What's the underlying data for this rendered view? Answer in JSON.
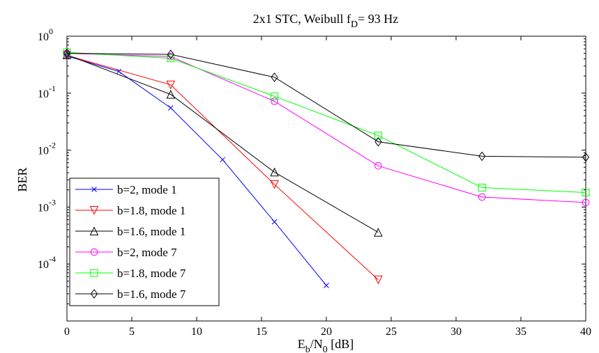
{
  "chart_data": {
    "type": "line",
    "title": "2x1 STC, Weibull f",
    "title_sub": "D",
    "title_suffix": "= 93 Hz",
    "xlabel": {
      "main": "E",
      "sub1": "b",
      "mid": "/N",
      "sub2": "0",
      "suffix": " [dB]"
    },
    "ylabel": "BER",
    "xlim": [
      0,
      40
    ],
    "ylim": [
      1e-05,
      1
    ],
    "yscale": "log",
    "xticks": [
      0,
      5,
      10,
      15,
      20,
      25,
      30,
      35,
      40
    ],
    "xtick_labels": [
      "0",
      "5",
      "10",
      "15",
      "20",
      "25",
      "30",
      "35",
      "40"
    ],
    "yticks": [
      1,
      0.1,
      0.01,
      0.001,
      0.0001
    ],
    "ytick_labels": [
      {
        "base": "10",
        "exp": "0"
      },
      {
        "base": "10",
        "exp": "-1"
      },
      {
        "base": "10",
        "exp": "-2"
      },
      {
        "base": "10",
        "exp": "-3"
      },
      {
        "base": "10",
        "exp": "-4"
      }
    ],
    "grid": false,
    "legend_position": "lower-left",
    "series": [
      {
        "name": "b=2, mode 1",
        "color": "#0000ff",
        "marker": "x",
        "x": [
          0,
          4,
          8,
          12,
          16,
          20
        ],
        "y": [
          0.45,
          0.24,
          0.055,
          0.0068,
          0.00055,
          4.2e-05
        ]
      },
      {
        "name": "b=1.8, mode 1",
        "color": "#ff0000",
        "marker": "triangle-down",
        "x": [
          0,
          8,
          16,
          24
        ],
        "y": [
          0.46,
          0.14,
          0.0025,
          5.3e-05
        ]
      },
      {
        "name": "b=1.6, mode 1",
        "color": "#000000",
        "marker": "triangle-up",
        "x": [
          0,
          8,
          16,
          24
        ],
        "y": [
          0.47,
          0.095,
          0.0041,
          0.00036
        ]
      },
      {
        "name": "b=2, mode 7",
        "color": "#ff00ff",
        "marker": "circle",
        "x": [
          0,
          8,
          16,
          24,
          32,
          40
        ],
        "y": [
          0.5,
          0.44,
          0.072,
          0.0053,
          0.0015,
          0.0012
        ]
      },
      {
        "name": "b=1.8, mode 7",
        "color": "#00ff00",
        "marker": "square",
        "x": [
          0,
          8,
          16,
          24,
          32,
          40
        ],
        "y": [
          0.52,
          0.41,
          0.088,
          0.018,
          0.0022,
          0.0018
        ]
      },
      {
        "name": "b=1.6, mode 7",
        "color": "#000000",
        "marker": "diamond",
        "x": [
          0,
          8,
          16,
          24,
          32,
          40
        ],
        "y": [
          0.5,
          0.48,
          0.19,
          0.014,
          0.0078,
          0.0075
        ]
      }
    ]
  }
}
